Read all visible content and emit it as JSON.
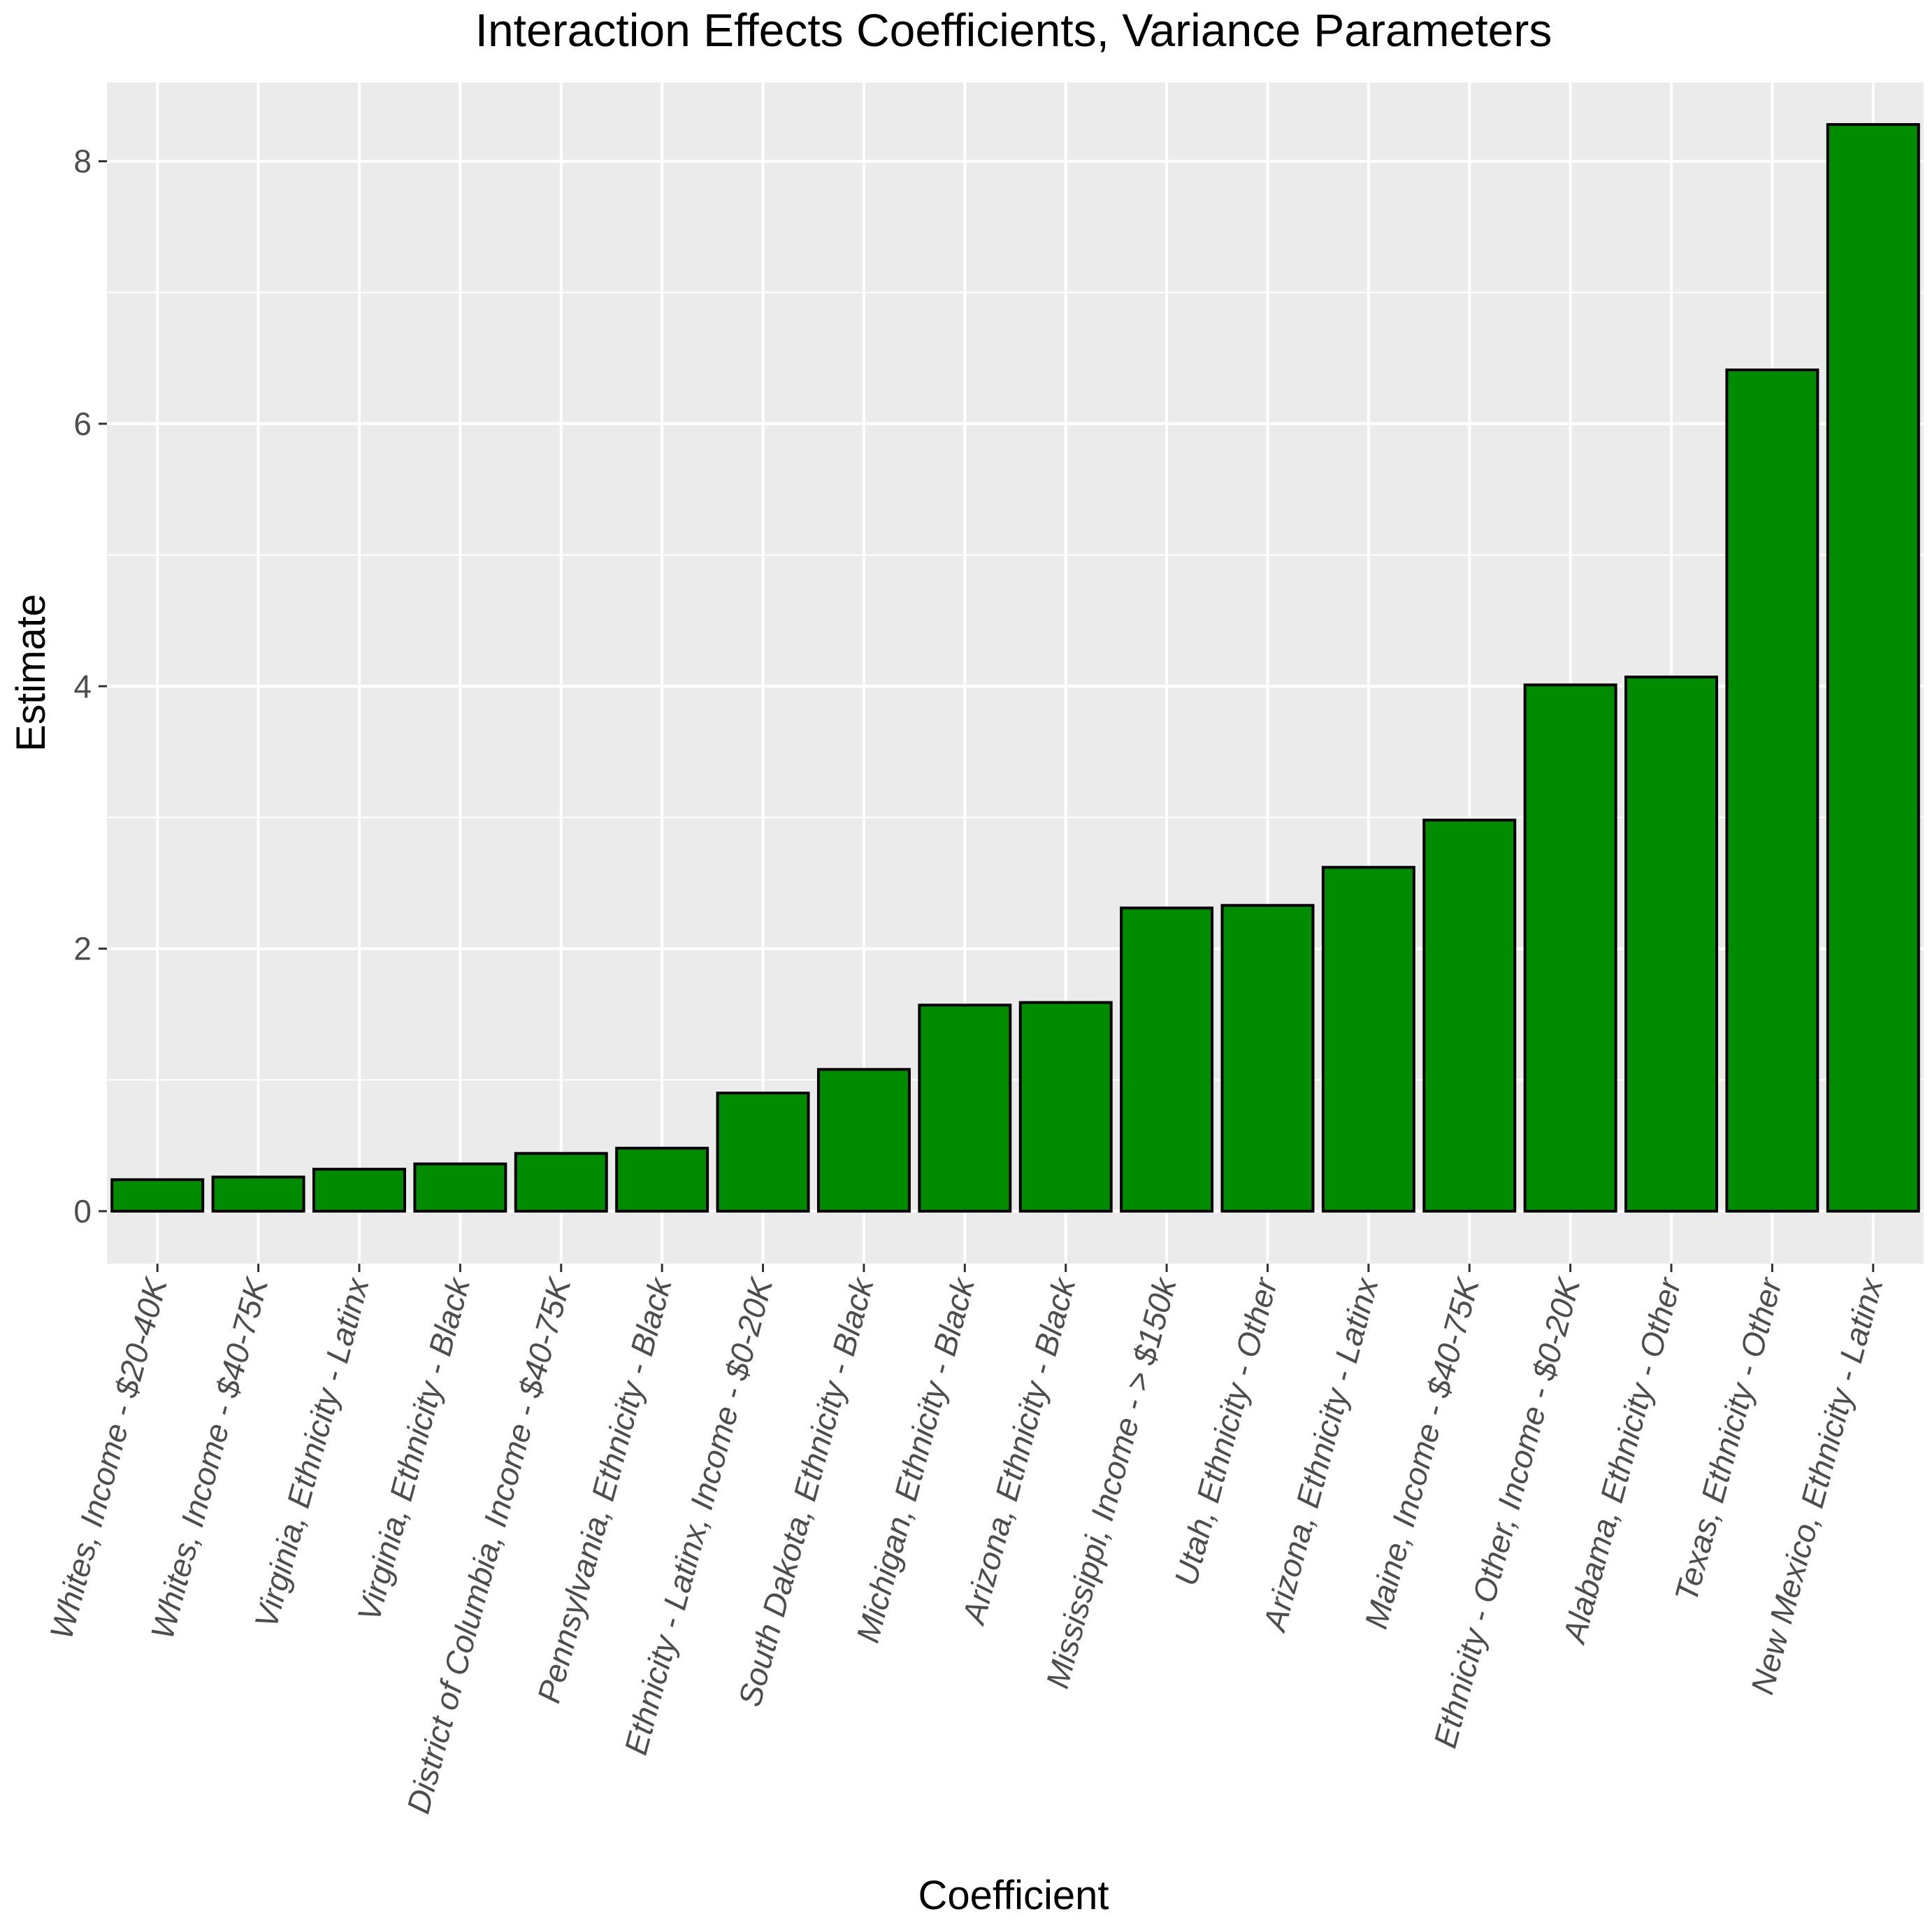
{
  "chart_data": {
    "type": "bar",
    "title": "Interaction Effects Coefficients, Variance Parameters",
    "xlabel": "Coefficient",
    "ylabel": "Estimate",
    "ylim": [
      -0.4,
      8.6
    ],
    "yticks": [
      0,
      2,
      4,
      6,
      8
    ],
    "grid": true,
    "bar_color": "#008b00",
    "bar_border_color": "#000000",
    "panel_color": "#ebebeb",
    "categories": [
      "Whites, Income - $20-40K",
      "Whites, Income - $40-75K",
      "Virginia, Ethnicity - Latinx",
      "Virginia, Ethnicity - Black",
      "District of Columbia, Income - $40-75K",
      "Pennsylvania, Ethnicity - Black",
      "Ethnicity - Latinx, Income - $0-20K",
      "South Dakota, Ethnicity - Black",
      "Michigan, Ethnicity - Black",
      "Arizona, Ethnicity - Black",
      "Mississippi, Income - > $150k",
      "Utah, Ethnicity - Other",
      "Arizona, Ethnicity - Latinx",
      "Maine, Income - $40-75K",
      "Ethnicity - Other, Income - $0-20K",
      "Alabama, Ethnicity - Other",
      "Texas, Ethnicity - Other",
      "New Mexico, Ethnicity - Latinx"
    ],
    "values": [
      0.24,
      0.26,
      0.32,
      0.36,
      0.44,
      0.48,
      0.9,
      1.08,
      1.57,
      1.59,
      2.31,
      2.33,
      2.62,
      2.98,
      4.01,
      4.07,
      6.41,
      8.28
    ]
  }
}
